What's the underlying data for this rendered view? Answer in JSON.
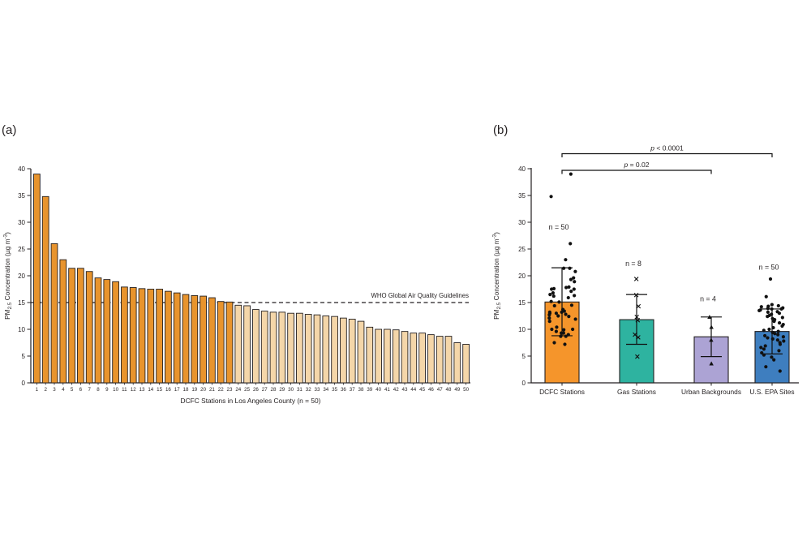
{
  "panel_a": {
    "label": "(a)"
  },
  "panel_b": {
    "label": "(b)"
  },
  "chart_data": [
    {
      "id": "a",
      "type": "bar",
      "xlabel": "DCFC Stations in Los Angeles County (n = 50)",
      "ylabel_parts": [
        {
          "t": "PM",
          "style": "normal"
        },
        {
          "t": "2.5",
          "style": "sub"
        },
        {
          "t": " Concentration (µg m",
          "style": "normal"
        },
        {
          "t": "-3",
          "style": "sup"
        },
        {
          "t": ")",
          "style": "normal"
        }
      ],
      "categories": [
        "1",
        "2",
        "3",
        "4",
        "5",
        "6",
        "7",
        "8",
        "9",
        "10",
        "11",
        "12",
        "13",
        "14",
        "15",
        "16",
        "17",
        "18",
        "19",
        "20",
        "21",
        "22",
        "23",
        "24",
        "25",
        "26",
        "27",
        "28",
        "29",
        "30",
        "31",
        "32",
        "33",
        "34",
        "35",
        "36",
        "37",
        "38",
        "39",
        "40",
        "41",
        "42",
        "43",
        "44",
        "45",
        "46",
        "47",
        "48",
        "49",
        "50"
      ],
      "values": [
        39.0,
        34.8,
        26.0,
        23.0,
        21.4,
        21.4,
        20.8,
        19.6,
        19.3,
        18.9,
        17.9,
        17.8,
        17.6,
        17.5,
        17.5,
        17.1,
        16.8,
        16.5,
        16.3,
        16.2,
        15.9,
        15.2,
        15.1,
        14.5,
        14.4,
        13.7,
        13.4,
        13.2,
        13.2,
        13.0,
        13.0,
        12.8,
        12.7,
        12.5,
        12.4,
        12.1,
        11.9,
        11.5,
        10.4,
        10.0,
        10.0,
        9.9,
        9.6,
        9.3,
        9.3,
        9.0,
        8.7,
        8.7,
        7.5,
        7.2
      ],
      "ylim": [
        0,
        40
      ],
      "yticks": [
        0,
        5,
        10,
        15,
        20,
        25,
        30,
        35,
        40
      ],
      "threshold": {
        "value": 15,
        "label": "WHO Global Air Quality Guidelines",
        "style": "dashed"
      },
      "colors": {
        "above": "#E8942D",
        "below": "#F4D6A9",
        "outline": "#231F20"
      }
    },
    {
      "id": "b",
      "type": "bar-scatter",
      "ylabel_parts": [
        {
          "t": "PM",
          "style": "normal"
        },
        {
          "t": "2.5",
          "style": "sub"
        },
        {
          "t": " Concentration (µg m",
          "style": "normal"
        },
        {
          "t": "-3",
          "style": "sup"
        },
        {
          "t": ")",
          "style": "normal"
        }
      ],
      "categories": [
        "DCFC Stations",
        "Gas Stations",
        "Urban Backgrounds",
        "U.S. EPA Sites"
      ],
      "ylim": [
        0,
        40
      ],
      "yticks": [
        0,
        5,
        10,
        15,
        20,
        25,
        30,
        35,
        40
      ],
      "series": [
        {
          "name": "DCFC Stations",
          "mean": 15.1,
          "err_low": 8.8,
          "err_high": 21.5,
          "n_label": "n = 50",
          "n_label_y": 28.6,
          "color": "#F5952B",
          "marker": "circle",
          "jitter": 17,
          "points": [
            39.0,
            34.8,
            26.0,
            23.0,
            21.4,
            21.4,
            20.8,
            19.6,
            19.3,
            18.9,
            17.9,
            17.8,
            17.6,
            17.5,
            17.5,
            17.1,
            16.8,
            16.5,
            16.3,
            16.2,
            15.9,
            15.2,
            15.1,
            14.5,
            14.4,
            13.7,
            13.4,
            13.2,
            13.2,
            13.0,
            13.0,
            12.8,
            12.7,
            12.5,
            12.4,
            12.1,
            11.9,
            11.5,
            10.4,
            10.0,
            10.0,
            9.9,
            9.6,
            9.3,
            9.3,
            9.0,
            8.7,
            8.7,
            7.5,
            7.2
          ]
        },
        {
          "name": "Gas Stations",
          "mean": 11.8,
          "err_low": 7.2,
          "err_high": 16.5,
          "n_label": "n = 8",
          "n_label_y": 21.8,
          "color": "#2EB3A0",
          "marker": "x",
          "jitter": 3,
          "points": [
            19.4,
            16.4,
            14.3,
            12.3,
            11.7,
            9.0,
            8.5,
            4.9
          ]
        },
        {
          "name": "Urban Backgrounds",
          "mean": 8.6,
          "err_low": 4.9,
          "err_high": 12.3,
          "n_label": "n = 4",
          "n_label_y": 15.2,
          "color": "#ACA3D4",
          "marker": "triangle",
          "jitter": 3,
          "points": [
            12.3,
            10.4,
            8.0,
            3.6
          ]
        },
        {
          "name": "U.S. EPA Sites",
          "mean": 9.6,
          "err_low": 5.4,
          "err_high": 13.8,
          "n_label": "n = 50",
          "n_label_y": 21.1,
          "color": "#3E7EBF",
          "marker": "circle",
          "jitter": 16,
          "points": [
            19.4,
            16.1,
            14.6,
            14.4,
            14.3,
            14.2,
            14.0,
            13.9,
            13.8,
            13.8,
            13.6,
            13.5,
            13.3,
            13.2,
            13.0,
            12.8,
            12.6,
            12.4,
            12.2,
            12.0,
            11.8,
            11.5,
            11.2,
            10.9,
            10.6,
            10.3,
            10.0,
            9.8,
            9.6,
            9.4,
            9.2,
            9.0,
            8.8,
            8.6,
            8.4,
            8.2,
            8.0,
            7.8,
            7.5,
            7.2,
            6.9,
            6.6,
            6.3,
            6.0,
            5.6,
            5.2,
            4.8,
            4.3,
            3.0,
            2.2
          ]
        }
      ],
      "significance": [
        {
          "from": 0,
          "to": 3,
          "label": "p < 0.0001",
          "level": 42.8
        },
        {
          "from": 0,
          "to": 2,
          "label": "p = 0.02",
          "level": 39.7
        }
      ],
      "colors": {
        "outline": "#231F20",
        "marker": "#111111"
      }
    }
  ]
}
